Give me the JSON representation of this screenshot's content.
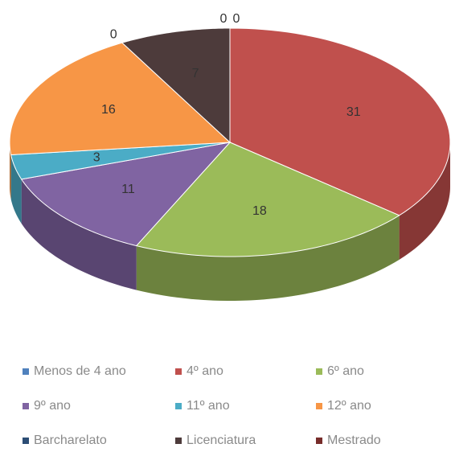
{
  "chart_data": {
    "type": "pie3d",
    "categories": [
      "Menos de 4 ano",
      "4º ano",
      "6º ano",
      "9º ano",
      "11º ano",
      "12º ano",
      "Barcharelato",
      "Licenciatura",
      "Mestrado"
    ],
    "values": [
      0,
      31,
      18,
      11,
      3,
      16,
      0,
      7,
      0
    ],
    "colors": [
      "#4f81bd",
      "#c0504d",
      "#9bbb59",
      "#8064a2",
      "#4bacc6",
      "#f79646",
      "#2c4d75",
      "#4d3b3b",
      "#772c2a"
    ],
    "legend": "bottom"
  }
}
